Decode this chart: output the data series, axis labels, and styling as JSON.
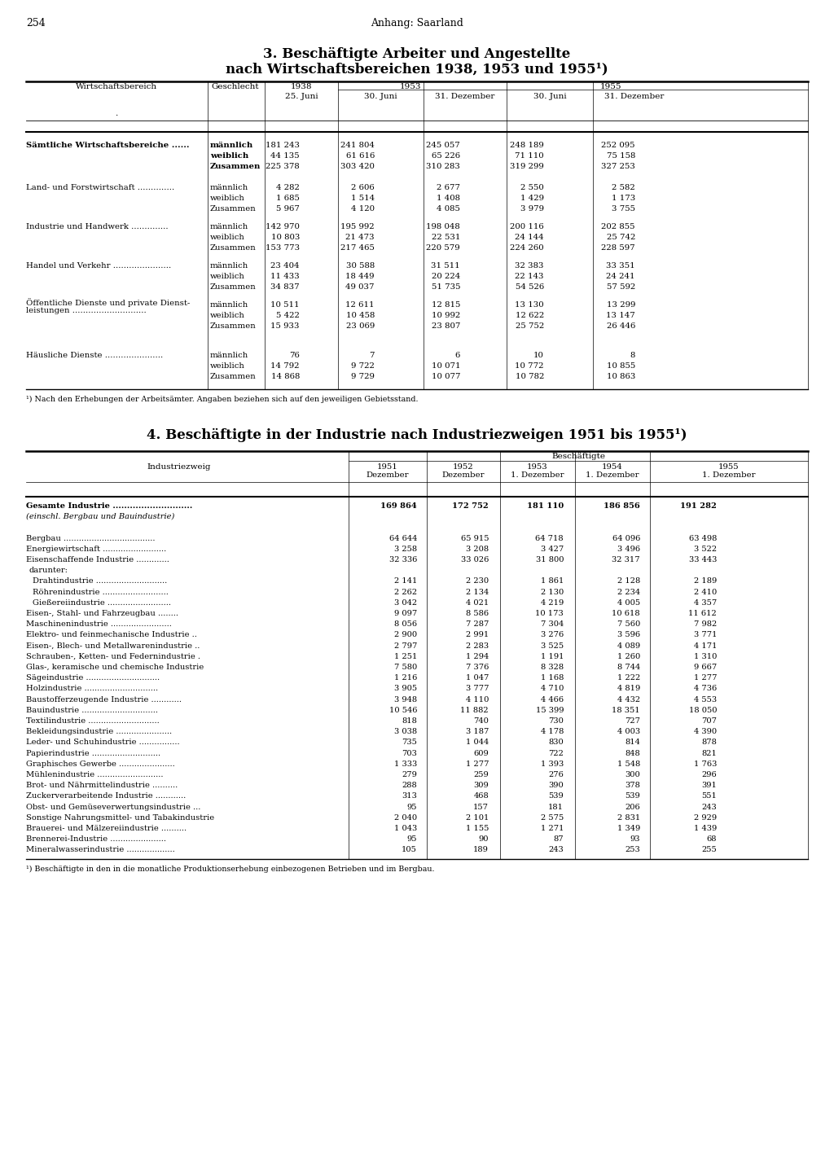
{
  "page_number": "254",
  "page_header": "Anhang: Saarland",
  "table1": {
    "title_line1": "3. Beschäftigte Arbeiter und Angestellte",
    "title_line2": "nach Wirtschaftsbereichen 1938, 1953 und 1955¹)",
    "rows": [
      {
        "sector": "Sämtliche Wirtschaftsbereiche ......",
        "bold": true,
        "sub": [
          [
            "männlich",
            "181 243",
            "241 804",
            "245 057",
            "248 189",
            "252 095"
          ],
          [
            "weiblich",
            "44 135",
            "61 616",
            "65 226",
            "71 110",
            "75 158"
          ],
          [
            "Zusammen",
            "225 378",
            "303 420",
            "310 283",
            "319 299",
            "327 253"
          ]
        ]
      },
      {
        "sector": "Land- und Forstwirtschaft ..............",
        "bold": false,
        "sub": [
          [
            "männlich",
            "4 282",
            "2 606",
            "2 677",
            "2 550",
            "2 582"
          ],
          [
            "weiblich",
            "1 685",
            "1 514",
            "1 408",
            "1 429",
            "1 173"
          ],
          [
            "Zusammen",
            "5 967",
            "4 120",
            "4 085",
            "3 979",
            "3 755"
          ]
        ]
      },
      {
        "sector": "Industrie und Handwerk ..............",
        "bold": false,
        "sub": [
          [
            "männlich",
            "142 970",
            "195 992",
            "198 048",
            "200 116",
            "202 855"
          ],
          [
            "weiblich",
            "10 803",
            "21 473",
            "22 531",
            "24 144",
            "25 742"
          ],
          [
            "Zusammen",
            "153 773",
            "217 465",
            "220 579",
            "224 260",
            "228 597"
          ]
        ]
      },
      {
        "sector": "Handel und Verkehr ......................",
        "bold": false,
        "sub": [
          [
            "männlich",
            "23 404",
            "30 588",
            "31 511",
            "32 383",
            "33 351"
          ],
          [
            "weiblich",
            "11 433",
            "18 449",
            "20 224",
            "22 143",
            "24 241"
          ],
          [
            "Zusammen",
            "34 837",
            "49 037",
            "51 735",
            "54 526",
            "57 592"
          ]
        ]
      },
      {
        "sector": "Öffentliche Dienste und private Dienst-|leistungen ............................",
        "bold": false,
        "sub": [
          [
            "männlich",
            "10 511",
            "12 611",
            "12 815",
            "13 130",
            "13 299"
          ],
          [
            "weiblich",
            "5 422",
            "10 458",
            "10 992",
            "12 622",
            "13 147"
          ],
          [
            "Zusammen",
            "15 933",
            "23 069",
            "23 807",
            "25 752",
            "26 446"
          ]
        ]
      },
      {
        "sector": "Häusliche Dienste ......................",
        "bold": false,
        "sub": [
          [
            "männlich",
            "76",
            "7",
            "6",
            "10",
            "8"
          ],
          [
            "weiblich",
            "14 792",
            "9 722",
            "10 071",
            "10 772",
            "10 855"
          ],
          [
            "Zusammen",
            "14 868",
            "9 729",
            "10 077",
            "10 782",
            "10 863"
          ]
        ]
      }
    ],
    "footnote": "¹) Nach den Erhebungen der Arbeitsämter. Angaben beziehen sich auf den jeweiligen Gebietsstand."
  },
  "table2": {
    "title_line1": "4. Beschäftigte in der Industrie nach Industriezweigen 1951 bis 1955¹)",
    "rows": [
      {
        "label": "Gesamte Industrie ............................",
        "bold": true,
        "indent": 0,
        "values": [
          "169 864",
          "172 752",
          "181 110",
          "186 856",
          "191 282"
        ]
      },
      {
        "label": "(einschl. Bergbau und Bauindustrie)",
        "bold": false,
        "indent": 0,
        "italic": true,
        "values": [
          "",
          "",
          "",
          "",
          ""
        ]
      },
      {
        "label": "",
        "bold": false,
        "indent": 0,
        "values": [
          "",
          "",
          "",
          "",
          ""
        ]
      },
      {
        "label": "Bergbau ....................................",
        "bold": false,
        "indent": 0,
        "values": [
          "64 644",
          "65 915",
          "64 718",
          "64 096",
          "63 498"
        ]
      },
      {
        "label": "Energiewirtschaft .........................",
        "bold": false,
        "indent": 0,
        "values": [
          "3 258",
          "3 208",
          "3 427",
          "3 496",
          "3 522"
        ]
      },
      {
        "label": "Eisenschaffende Industrie .............",
        "bold": false,
        "indent": 0,
        "values": [
          "32 336",
          "33 026",
          "31 800",
          "32 317",
          "33 443"
        ]
      },
      {
        "label": "darunter:",
        "bold": false,
        "indent": 4,
        "values": [
          "",
          "",
          "",
          "",
          ""
        ]
      },
      {
        "label": "Drahtindustrie ............................",
        "bold": false,
        "indent": 8,
        "values": [
          "2 141",
          "2 230",
          "1 861",
          "2 128",
          "2 189"
        ]
      },
      {
        "label": "Röhrenindustrie ..........................",
        "bold": false,
        "indent": 8,
        "values": [
          "2 262",
          "2 134",
          "2 130",
          "2 234",
          "2 410"
        ]
      },
      {
        "label": "Gießereiindustrie .........................",
        "bold": false,
        "indent": 8,
        "values": [
          "3 042",
          "4 021",
          "4 219",
          "4 005",
          "4 357"
        ]
      },
      {
        "label": "Eisen-, Stahl- und Fahrzeugbau ........",
        "bold": false,
        "indent": 0,
        "values": [
          "9 097",
          "8 586",
          "10 173",
          "10 618",
          "11 612"
        ]
      },
      {
        "label": "Maschinenindustrie ........................",
        "bold": false,
        "indent": 0,
        "values": [
          "8 056",
          "7 287",
          "7 304",
          "7 560",
          "7 982"
        ]
      },
      {
        "label": "Elektro- und feinmechanische Industrie ..",
        "bold": false,
        "indent": 0,
        "values": [
          "2 900",
          "2 991",
          "3 276",
          "3 596",
          "3 771"
        ]
      },
      {
        "label": "Eisen-, Blech- und Metallwarenindustrie ..",
        "bold": false,
        "indent": 0,
        "values": [
          "2 797",
          "2 283",
          "3 525",
          "4 089",
          "4 171"
        ]
      },
      {
        "label": "Schrauben-, Ketten- und Federnindustrie .",
        "bold": false,
        "indent": 0,
        "values": [
          "1 251",
          "1 294",
          "1 191",
          "1 260",
          "1 310"
        ]
      },
      {
        "label": "Glas-, keramische und chemische Industrie",
        "bold": false,
        "indent": 0,
        "values": [
          "7 580",
          "7 376",
          "8 328",
          "8 744",
          "9 667"
        ]
      },
      {
        "label": "Sägeindustrie .............................",
        "bold": false,
        "indent": 0,
        "values": [
          "1 216",
          "1 047",
          "1 168",
          "1 222",
          "1 277"
        ]
      },
      {
        "label": "Holzindustrie .............................",
        "bold": false,
        "indent": 0,
        "values": [
          "3 905",
          "3 777",
          "4 710",
          "4 819",
          "4 736"
        ]
      },
      {
        "label": "Baustofferzeugende Industrie ............",
        "bold": false,
        "indent": 0,
        "values": [
          "3 948",
          "4 110",
          "4 466",
          "4 432",
          "4 553"
        ]
      },
      {
        "label": "Bauindustrie ..............................",
        "bold": false,
        "indent": 0,
        "values": [
          "10 546",
          "11 882",
          "15 399",
          "18 351",
          "18 050"
        ]
      },
      {
        "label": "Textilindustrie ............................",
        "bold": false,
        "indent": 0,
        "values": [
          "818",
          "740",
          "730",
          "727",
          "707"
        ]
      },
      {
        "label": "Bekleidungsindustrie ......................",
        "bold": false,
        "indent": 0,
        "values": [
          "3 038",
          "3 187",
          "4 178",
          "4 003",
          "4 390"
        ]
      },
      {
        "label": "Leder- und Schuhindustrie ................",
        "bold": false,
        "indent": 0,
        "values": [
          "735",
          "1 044",
          "830",
          "814",
          "878"
        ]
      },
      {
        "label": "Papierindustrie ...........................",
        "bold": false,
        "indent": 0,
        "values": [
          "703",
          "609",
          "722",
          "848",
          "821"
        ]
      },
      {
        "label": "Graphisches Gewerbe ......................",
        "bold": false,
        "indent": 0,
        "values": [
          "1 333",
          "1 277",
          "1 393",
          "1 548",
          "1 763"
        ]
      },
      {
        "label": "Mühlenindustrie ..........................",
        "bold": false,
        "indent": 0,
        "values": [
          "279",
          "259",
          "276",
          "300",
          "296"
        ]
      },
      {
        "label": "Brot- und Nährmittelindustrie ..........",
        "bold": false,
        "indent": 0,
        "values": [
          "288",
          "309",
          "390",
          "378",
          "391"
        ]
      },
      {
        "label": "Zuckerverarbeitende Industrie ............",
        "bold": false,
        "indent": 0,
        "values": [
          "313",
          "468",
          "539",
          "539",
          "551"
        ]
      },
      {
        "label": "Obst- und Gemüseverwertungsindustrie ...",
        "bold": false,
        "indent": 0,
        "values": [
          "95",
          "157",
          "181",
          "206",
          "243"
        ]
      },
      {
        "label": "Sonstige Nahrungsmittel- und Tabakindustrie",
        "bold": false,
        "indent": 0,
        "values": [
          "2 040",
          "2 101",
          "2 575",
          "2 831",
          "2 929"
        ]
      },
      {
        "label": "Brauerei- und Mälzereiindustrie ..........",
        "bold": false,
        "indent": 0,
        "values": [
          "1 043",
          "1 155",
          "1 271",
          "1 349",
          "1 439"
        ]
      },
      {
        "label": "Brennerei-Industrie ......................",
        "bold": false,
        "indent": 0,
        "values": [
          "95",
          "90",
          "87",
          "93",
          "68"
        ]
      },
      {
        "label": "Mineralwasserindustrie ...................",
        "bold": false,
        "indent": 0,
        "values": [
          "105",
          "189",
          "243",
          "253",
          "255"
        ]
      }
    ],
    "footnote": "¹) Beschäftigte in den in die monatliche Produktionserhebung einbezogenen Betrieben und im Bergbau."
  }
}
